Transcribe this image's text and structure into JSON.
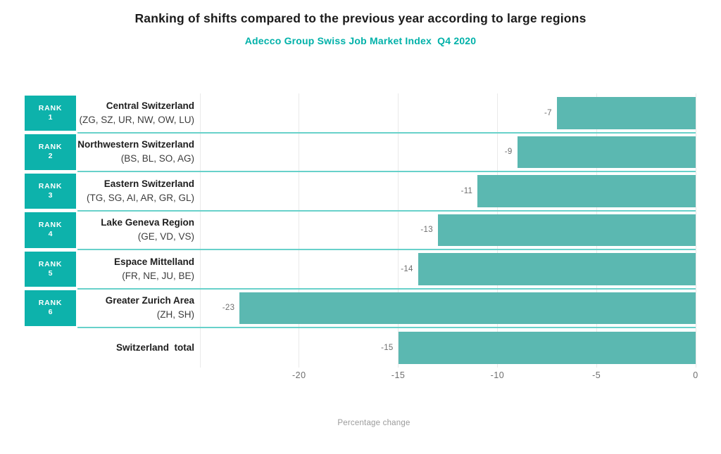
{
  "header": {
    "title": "Ranking of shifts compared to the previous year according to large regions",
    "subtitle": "Adecco Group Swiss Job Market Index  Q4 2020"
  },
  "chart_data": {
    "type": "bar",
    "orientation": "horizontal",
    "title": "Ranking of shifts compared to the previous year according to large regions",
    "subtitle": "Adecco Group Swiss Job Market Index Q4 2020",
    "xlabel": "Percentage change",
    "xlim": [
      -25,
      0
    ],
    "xticks": [
      -20,
      -15,
      -10,
      -5,
      0
    ],
    "gridlines": [
      -25,
      -20,
      -15,
      -10,
      -5,
      0
    ],
    "grid": true,
    "legend": "none",
    "rows": [
      {
        "rank_label": "RANK",
        "rank": "1",
        "region": "Central Switzerland",
        "cantons": "(ZG, SZ, UR, NW, OW, LU)",
        "value": -7,
        "value_label": "-7"
      },
      {
        "rank_label": "RANK",
        "rank": "2",
        "region": "Northwestern Switzerland",
        "cantons": "(BS, BL, SO, AG)",
        "value": -9,
        "value_label": "-9"
      },
      {
        "rank_label": "RANK",
        "rank": "3",
        "region": "Eastern Switzerland",
        "cantons": "(TG, SG, AI, AR, GR, GL)",
        "value": -11,
        "value_label": "-11"
      },
      {
        "rank_label": "RANK",
        "rank": "4",
        "region": "Lake Geneva Region",
        "cantons": "(GE, VD, VS)",
        "value": -13,
        "value_label": "-13"
      },
      {
        "rank_label": "RANK",
        "rank": "5",
        "region": "Espace Mittelland",
        "cantons": "(FR, NE, JU, BE)",
        "value": -14,
        "value_label": "-14"
      },
      {
        "rank_label": "RANK",
        "rank": "6",
        "region": "Greater Zurich Area",
        "cantons": "(ZH, SH)",
        "value": -23,
        "value_label": "-23"
      }
    ],
    "total": {
      "label": "Switzerland  total",
      "value": -15,
      "value_label": "-15"
    },
    "colors": {
      "rank_box_teal": "#0db2ab",
      "bar_teal": "#5bb8b1",
      "separator_teal": "#68d1ca",
      "gridline_gray": "#e9e9e9",
      "subtitle_teal": "#00b1a9",
      "title_black": "#1b1b1b"
    }
  }
}
